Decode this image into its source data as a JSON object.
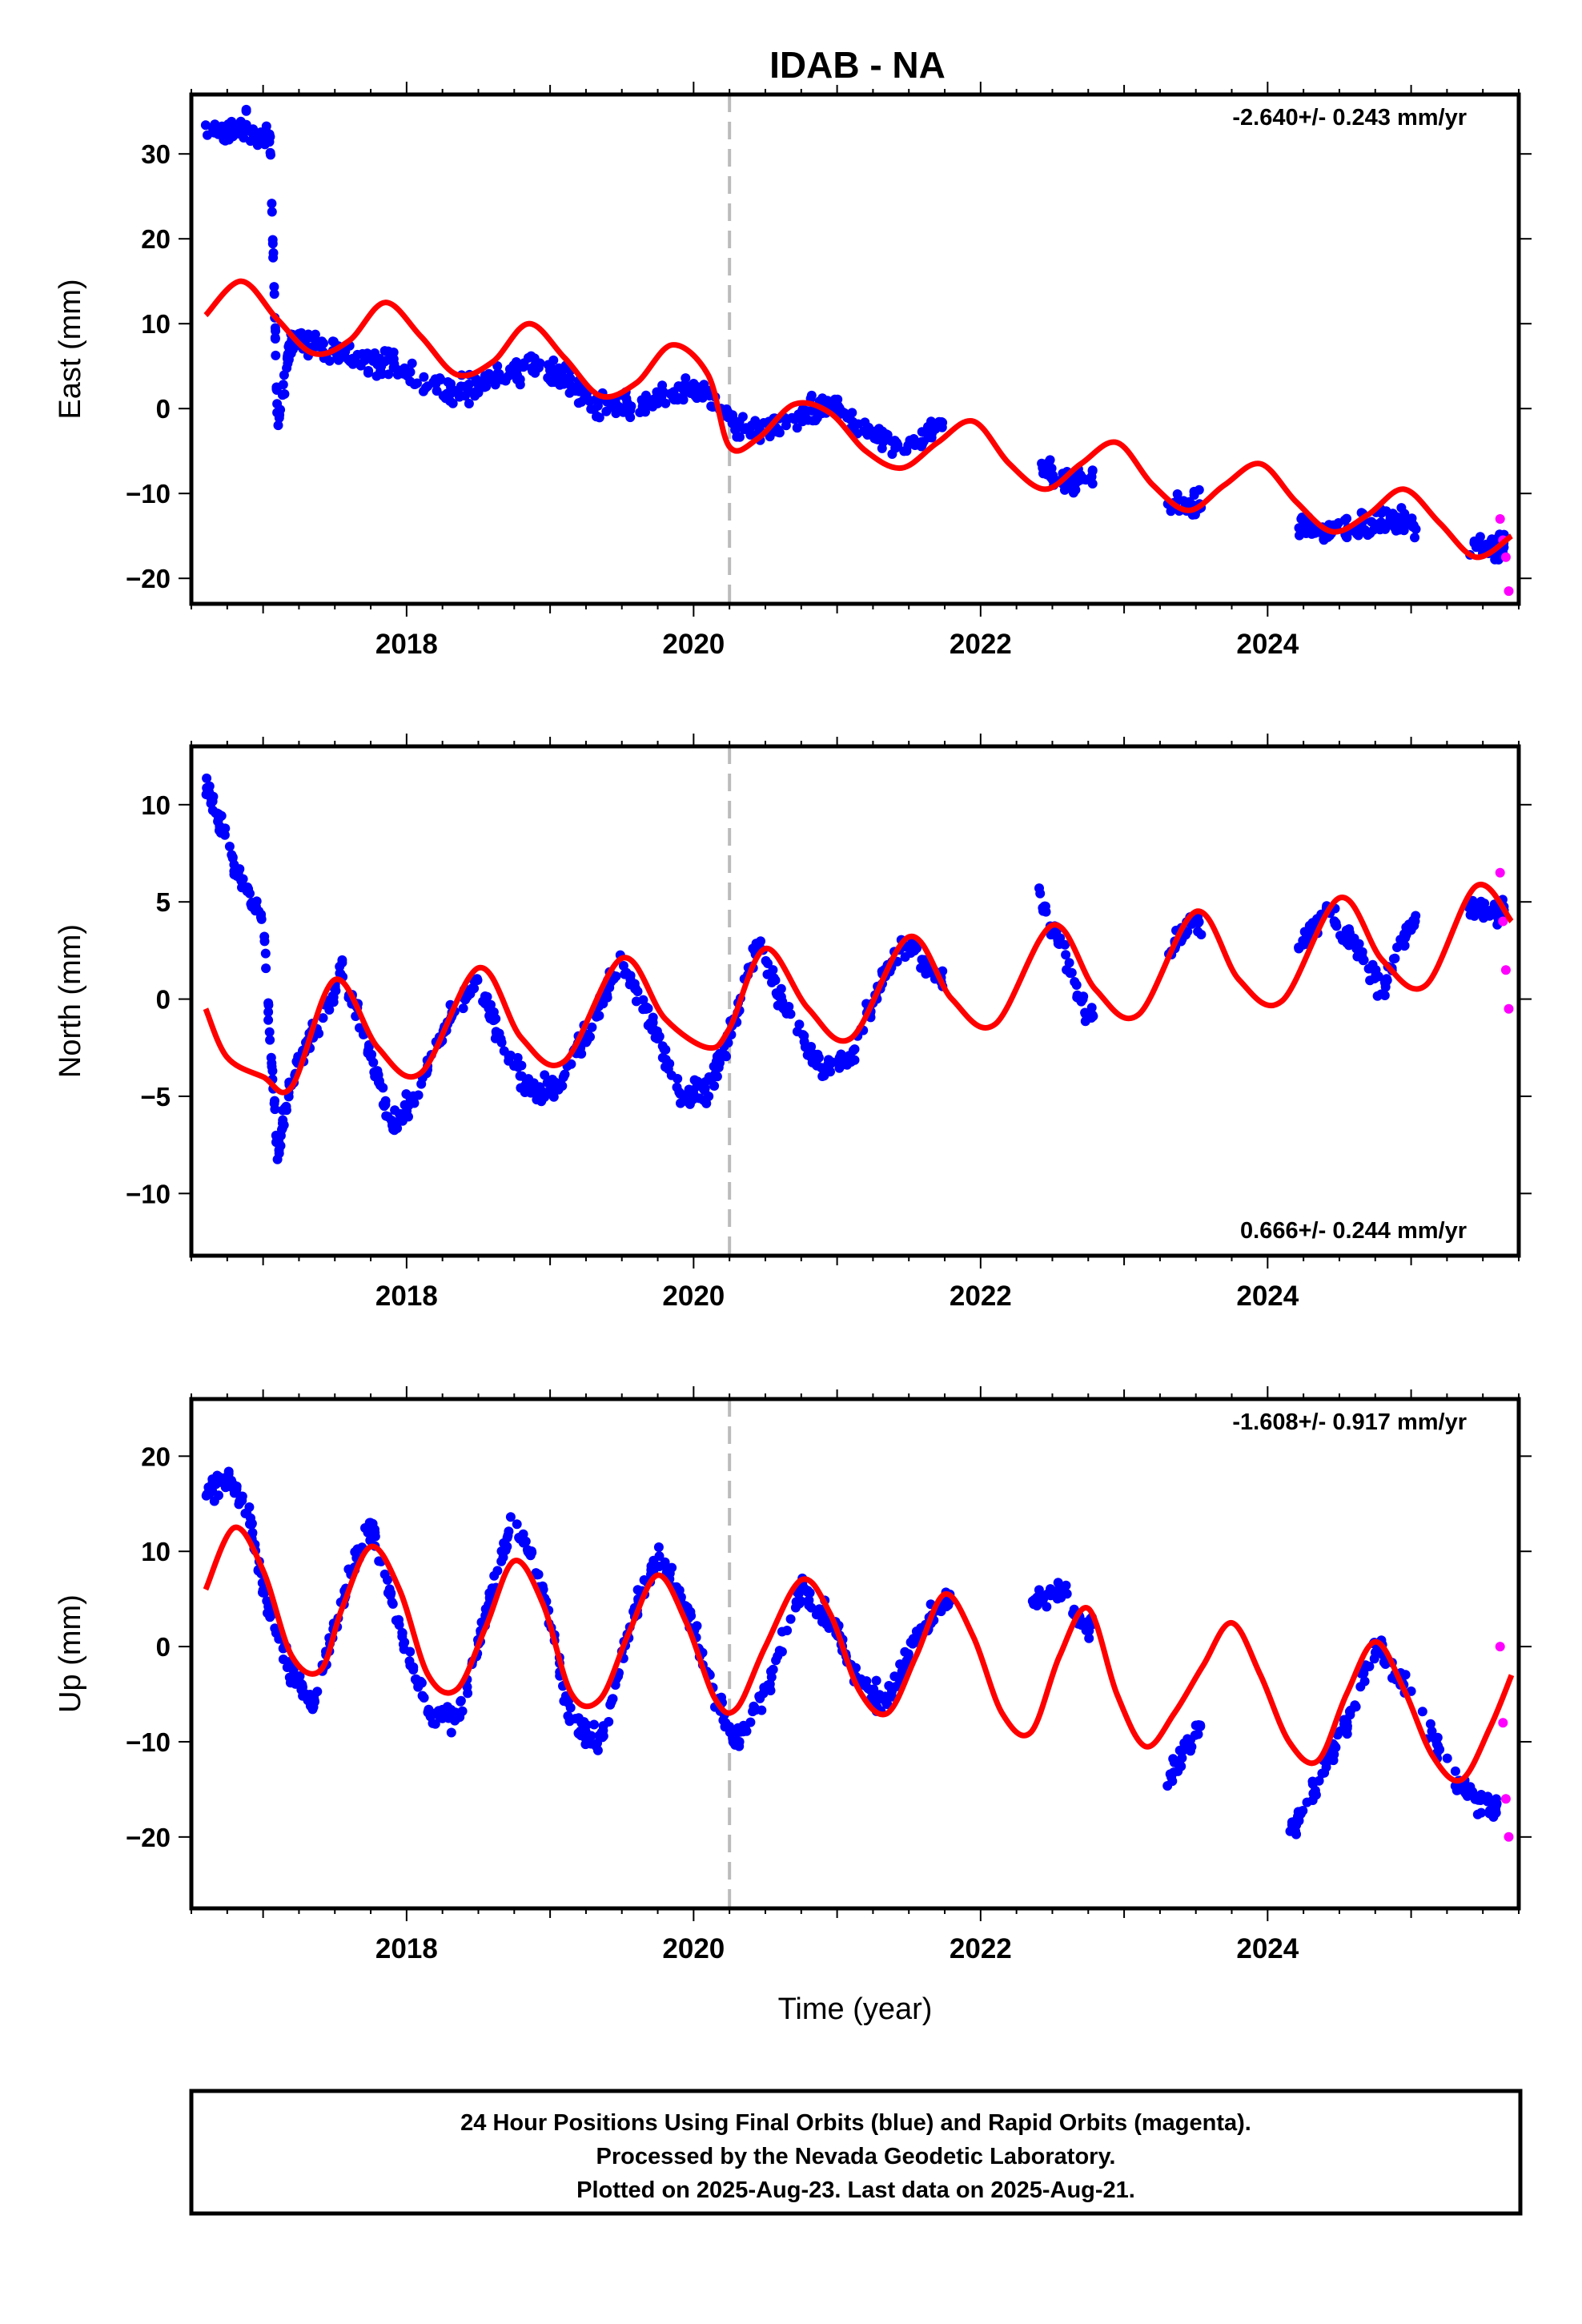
{
  "colors": {
    "final_orbits": "#0000ff",
    "rapid_orbits": "#ff00ff",
    "model": "#ff0000",
    "event_line": "#bbbbbb",
    "frame": "#000000"
  },
  "chart_data": [
    {
      "type": "scatter",
      "title": "IDAB - NA",
      "xlabel": "",
      "ylabel": "East (mm)",
      "xlim": [
        2016.5,
        2025.75
      ],
      "ylim": [
        -23,
        37
      ],
      "x_ticks": [
        "2018",
        "2020",
        "2022",
        "2024"
      ],
      "y_ticks": [
        "30",
        "20",
        "10",
        "0",
        "−10",
        "−20"
      ],
      "rate_annotation": "-2.640+/- 0.243 mm/yr",
      "rate_annotation_position": "top-right",
      "event_line_x": 2020.25,
      "grid": false,
      "series": [
        {
          "name": "Final Orbits (blue)",
          "color": "#0000ff",
          "x": [
            2016.6,
            2016.75,
            2016.9,
            2017.05,
            2017.1,
            2017.2,
            2017.4,
            2017.6,
            2017.8,
            2018.0,
            2018.3,
            2018.5,
            2018.7,
            2018.9,
            2019.1,
            2019.3,
            2019.5,
            2019.7,
            2019.9,
            2020.1,
            2020.3,
            2020.5,
            2020.7,
            2020.9,
            2021.1,
            2021.3,
            2021.5,
            2021.7,
            2022.4,
            2022.6,
            2022.75,
            2023.3,
            2023.5,
            2024.2,
            2024.4,
            2024.6,
            2024.8,
            2025.0,
            2025.4,
            2025.6
          ],
          "y": [
            33.5,
            32.5,
            33.5,
            31.5,
            -1.5,
            8.5,
            7,
            6,
            5.5,
            4.5,
            2,
            2.5,
            4,
            5,
            3.5,
            0.5,
            0,
            1,
            2,
            1.5,
            -2,
            -3,
            -1,
            0.5,
            -1,
            -3.5,
            -4.5,
            -2.5,
            -6.5,
            -8.5,
            -8,
            -11,
            -11.5,
            -13.5,
            -14.5,
            -14,
            -13,
            -13.5,
            -16.5,
            -16
          ]
        },
        {
          "name": "Rapid Orbits (magenta)",
          "color": "#ff00ff",
          "x": [
            2025.62,
            2025.64,
            2025.66,
            2025.68
          ],
          "y": [
            -13,
            -15.5,
            -17.5,
            -21.5
          ]
        },
        {
          "name": "Model",
          "color": "#ff0000",
          "x": [
            2016.6,
            2016.85,
            2017.1,
            2017.35,
            2017.6,
            2017.85,
            2018.1,
            2018.35,
            2018.6,
            2018.85,
            2019.1,
            2019.35,
            2019.6,
            2019.85,
            2020.1,
            2020.25,
            2020.45,
            2020.7,
            2020.95,
            2021.2,
            2021.45,
            2021.7,
            2021.95,
            2022.2,
            2022.45,
            2022.7,
            2022.95,
            2023.2,
            2023.45,
            2023.7,
            2023.95,
            2024.2,
            2024.45,
            2024.7,
            2024.95,
            2025.2,
            2025.45,
            2025.7
          ],
          "y": [
            11,
            15,
            10.5,
            6.5,
            8,
            12.5,
            8.5,
            4,
            5.5,
            10,
            6,
            1.5,
            3,
            7.5,
            4,
            -4.5,
            -3.5,
            0.5,
            -0.5,
            -5,
            -7,
            -4,
            -1.5,
            -6.5,
            -9.5,
            -6.5,
            -4,
            -9,
            -12,
            -9,
            -6.5,
            -11,
            -14.5,
            -12.5,
            -9.5,
            -13.5,
            -17.5,
            -15
          ]
        }
      ]
    },
    {
      "type": "scatter",
      "xlabel": "",
      "ylabel": "North (mm)",
      "xlim": [
        2016.5,
        2025.75
      ],
      "ylim": [
        -13.2,
        13
      ],
      "x_ticks": [
        "2018",
        "2020",
        "2022",
        "2024"
      ],
      "y_ticks": [
        "10",
        "5",
        "0",
        "−5",
        "−10"
      ],
      "rate_annotation": "0.666+/- 0.244 mm/yr",
      "rate_annotation_position": "bottom-right",
      "event_line_x": 2020.25,
      "grid": false,
      "series": [
        {
          "name": "Final Orbits (blue)",
          "color": "#0000ff",
          "x": [
            2016.6,
            2016.7,
            2016.85,
            2017.0,
            2017.1,
            2017.2,
            2017.4,
            2017.55,
            2017.75,
            2017.9,
            2018.1,
            2018.3,
            2018.5,
            2018.7,
            2018.9,
            2019.1,
            2019.3,
            2019.5,
            2019.7,
            2019.9,
            2020.1,
            2020.25,
            2020.45,
            2020.65,
            2020.9,
            2021.1,
            2021.3,
            2021.5,
            2021.7,
            2022.4,
            2022.55,
            2022.75,
            2023.3,
            2023.5,
            2024.2,
            2024.4,
            2024.6,
            2024.8,
            2025.0,
            2025.4,
            2025.6
          ],
          "y": [
            11,
            9,
            6,
            4,
            -8,
            -4,
            -1,
            1.5,
            -3,
            -6.5,
            -4.5,
            -1,
            1,
            -3,
            -5,
            -4,
            -1,
            2,
            -1,
            -5,
            -4.5,
            -2,
            3,
            -1,
            -3.5,
            -3,
            1,
            3,
            1,
            5.5,
            3,
            -1,
            2.5,
            4,
            2.5,
            4.5,
            3,
            0.5,
            4,
            4.5,
            4.5
          ]
        },
        {
          "name": "Rapid Orbits (magenta)",
          "color": "#ff00ff",
          "x": [
            2025.62,
            2025.64,
            2025.66,
            2025.68
          ],
          "y": [
            6.5,
            4,
            1.5,
            -0.5
          ]
        },
        {
          "name": "Model",
          "color": "#ff0000",
          "x": [
            2016.6,
            2016.75,
            2017.0,
            2017.2,
            2017.5,
            2017.8,
            2018.1,
            2018.5,
            2018.8,
            2019.1,
            2019.5,
            2019.8,
            2020.1,
            2020.25,
            2020.5,
            2020.8,
            2021.1,
            2021.5,
            2021.8,
            2022.1,
            2022.5,
            2022.8,
            2023.1,
            2023.5,
            2023.8,
            2024.1,
            2024.5,
            2024.8,
            2025.1,
            2025.45,
            2025.7
          ],
          "y": [
            -0.5,
            -3,
            -4,
            -4.5,
            1,
            -2.5,
            -3.8,
            1.6,
            -2,
            -3.2,
            2.1,
            -1,
            -2.5,
            -1.5,
            2.6,
            -0.5,
            -2,
            3.2,
            0,
            -1.3,
            3.8,
            0.5,
            -0.8,
            4.5,
            1,
            -0.1,
            5.2,
            2,
            0.7,
            5.8,
            4
          ]
        }
      ]
    },
    {
      "type": "scatter",
      "xlabel": "Time (year)",
      "ylabel": "Up (mm)",
      "xlim": [
        2016.5,
        2025.75
      ],
      "ylim": [
        -27.5,
        26
      ],
      "x_ticks": [
        "2018",
        "2020",
        "2022",
        "2024"
      ],
      "y_ticks": [
        "20",
        "10",
        "0",
        "−10",
        "−20"
      ],
      "rate_annotation": "-1.608+/- 0.917 mm/yr",
      "rate_annotation_position": "top-right",
      "event_line_x": 2020.25,
      "grid": false,
      "series": [
        {
          "name": "Final Orbits (blue)",
          "color": "#0000ff",
          "x": [
            2016.6,
            2016.75,
            2016.9,
            2017.0,
            2017.2,
            2017.35,
            2017.55,
            2017.75,
            2017.95,
            2018.15,
            2018.35,
            2018.55,
            2018.75,
            2018.95,
            2019.15,
            2019.35,
            2019.55,
            2019.75,
            2019.95,
            2020.15,
            2020.3,
            2020.5,
            2020.75,
            2020.95,
            2021.15,
            2021.35,
            2021.55,
            2021.75,
            2022.35,
            2022.55,
            2022.75,
            2023.3,
            2023.5,
            2024.15,
            2024.35,
            2024.55,
            2024.75,
            2024.95,
            2025.35,
            2025.55
          ],
          "y": [
            16,
            18,
            14,
            6,
            -3,
            -6,
            5,
            13,
            2,
            -7,
            -8,
            3,
            14,
            6,
            -8,
            -10,
            2,
            10,
            4,
            -5,
            -10,
            -5,
            6,
            3,
            -4,
            -6,
            1,
            5,
            4,
            6,
            2,
            -14,
            -9,
            -20,
            -14,
            -8,
            0,
            -4,
            -15,
            -17
          ]
        },
        {
          "name": "Rapid Orbits (magenta)",
          "color": "#ff00ff",
          "x": [
            2025.62,
            2025.64,
            2025.66,
            2025.68
          ],
          "y": [
            0,
            -8,
            -16,
            -20
          ]
        },
        {
          "name": "Model",
          "color": "#ff0000",
          "x": [
            2016.6,
            2016.8,
            2017.0,
            2017.2,
            2017.4,
            2017.55,
            2017.75,
            2017.95,
            2018.15,
            2018.35,
            2018.55,
            2018.75,
            2018.95,
            2019.15,
            2019.35,
            2019.55,
            2019.75,
            2019.95,
            2020.15,
            2020.3,
            2020.5,
            2020.75,
            2020.95,
            2021.15,
            2021.35,
            2021.55,
            2021.75,
            2021.95,
            2022.15,
            2022.35,
            2022.55,
            2022.75,
            2022.95,
            2023.15,
            2023.35,
            2023.55,
            2023.75,
            2023.95,
            2024.15,
            2024.35,
            2024.55,
            2024.75,
            2024.95,
            2025.15,
            2025.35,
            2025.55,
            2025.7
          ],
          "y": [
            6,
            12.5,
            8,
            -1,
            -2.5,
            4,
            10.5,
            6,
            -3,
            -4.5,
            2,
            9,
            4.5,
            -5,
            -5.5,
            1.5,
            7.5,
            2.5,
            -5.5,
            -6.5,
            0,
            7,
            3.5,
            -4.5,
            -7,
            -1,
            5.5,
            1,
            -7,
            -9,
            -1,
            4,
            -5,
            -10.5,
            -7,
            -2,
            2.5,
            -3,
            -10,
            -12,
            -5,
            0.5,
            -4.5,
            -11.5,
            -14,
            -8.5,
            -3
          ]
        }
      ]
    }
  ],
  "footer": {
    "line1": "24 Hour Positions Using Final Orbits (blue) and Rapid Orbits (magenta).",
    "line2": "Processed by the Nevada Geodetic Laboratory.",
    "line3": "Plotted on 2025-Aug-23. Last data on 2025-Aug-21."
  }
}
